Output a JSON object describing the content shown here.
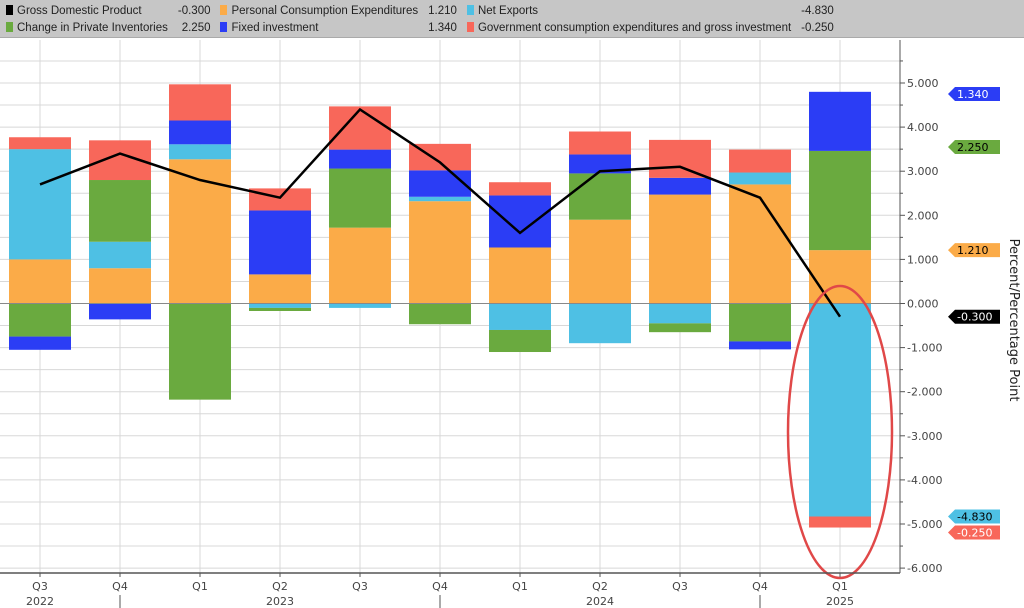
{
  "legend": [
    {
      "name": "Gross Domestic Product",
      "value": "-0.300",
      "color": "#000000"
    },
    {
      "name": "Change in Private Inventories",
      "value": "2.250",
      "color": "#6aaa3f"
    },
    {
      "name": "Personal Consumption Expenditures",
      "value": "1.210",
      "color": "#fbab48"
    },
    {
      "name": "Fixed investment",
      "value": "1.340",
      "color": "#2b3df5"
    },
    {
      "name": "Net Exports",
      "value": "-4.830",
      "color": "#4ec0e4"
    },
    {
      "name": "Government consumption expenditures and gross investment",
      "value": "-0.250",
      "color": "#f8675a"
    }
  ],
  "chart_data": {
    "type": "bar",
    "stacked": true,
    "ylabel": "Percent/Percentage Point",
    "ylim": [
      -6,
      5.5
    ],
    "yticks": [
      "5.000",
      "4.000",
      "3.000",
      "2.000",
      "1.000",
      "0.000",
      "-1.000",
      "-2.000",
      "-3.000",
      "-4.000",
      "-5.000",
      "-6.000"
    ],
    "grid": true,
    "legend_placement": "top",
    "categories": [
      "Q3",
      "Q4",
      "Q1",
      "Q2",
      "Q3",
      "Q4",
      "Q1",
      "Q2",
      "Q3",
      "Q4",
      "Q1"
    ],
    "years": [
      {
        "label": "2022",
        "index": 0
      },
      {
        "label": "2023",
        "index": 3
      },
      {
        "label": "2024",
        "index": 7
      },
      {
        "label": "2025",
        "index": 10
      }
    ],
    "series": [
      {
        "name": "Personal Consumption Expenditures",
        "color": "#fbab48",
        "values": [
          1.0,
          0.8,
          3.27,
          0.66,
          1.72,
          2.32,
          1.27,
          1.9,
          2.47,
          2.7,
          1.21
        ]
      },
      {
        "name": "Net Exports",
        "color": "#4ec0e4",
        "values": [
          2.5,
          0.6,
          0.34,
          -0.1,
          -0.1,
          0.1,
          -0.6,
          -0.9,
          -0.45,
          0.27,
          -4.83
        ]
      },
      {
        "name": "Change in Private Inventories",
        "color": "#6aaa3f",
        "values": [
          -0.75,
          1.4,
          -2.18,
          -0.07,
          1.34,
          -0.47,
          -0.5,
          1.05,
          -0.2,
          -0.86,
          2.25
        ]
      },
      {
        "name": "Fixed investment",
        "color": "#2b3df5",
        "values": [
          -0.3,
          -0.36,
          0.54,
          1.45,
          0.43,
          0.6,
          1.18,
          0.43,
          0.38,
          -0.18,
          1.34
        ]
      },
      {
        "name": "Government consumption expenditures and gross investment",
        "color": "#f8675a",
        "values": [
          0.27,
          0.9,
          0.82,
          0.5,
          0.98,
          0.6,
          0.3,
          0.52,
          0.86,
          0.52,
          -0.25
        ]
      }
    ],
    "line": {
      "name": "Gross Domestic Product",
      "color": "#000000",
      "values": [
        2.7,
        3.4,
        2.8,
        2.4,
        4.4,
        3.2,
        1.6,
        3.0,
        3.1,
        2.4,
        -0.3
      ]
    },
    "last_value_tags": [
      {
        "value": "1.340",
        "y": 4.75,
        "color": "#2b3df5",
        "text_color": "#ffffff"
      },
      {
        "value": "2.250",
        "y": 3.55,
        "color": "#6aaa3f",
        "text_color": "#000000"
      },
      {
        "value": "1.210",
        "y": 1.21,
        "color": "#fbab48",
        "text_color": "#000000"
      },
      {
        "value": "-0.300",
        "y": -0.3,
        "color": "#000000",
        "text_color": "#ffffff"
      },
      {
        "value": "-4.830",
        "y": -4.83,
        "color": "#4ec0e4",
        "text_color": "#000000"
      },
      {
        "value": "-0.250",
        "y": -5.08,
        "color": "#f8675a",
        "text_color": "#ffffff"
      }
    ],
    "annotation": {
      "type": "ellipse",
      "color": "#e04848",
      "category_index": 10
    }
  }
}
